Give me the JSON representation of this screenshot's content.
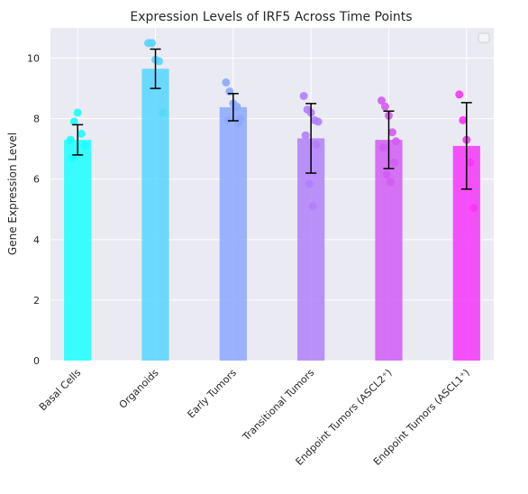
{
  "chart_data": {
    "type": "bar",
    "title": "Expression Levels of IRF5 Across Time Points",
    "xlabel": "",
    "ylabel": "Gene Expression Level",
    "ylim": [
      0,
      11
    ],
    "yticks": [
      0,
      2,
      4,
      6,
      8,
      10
    ],
    "grid": true,
    "legend": "top-right, empty",
    "categories": [
      "Basal Cells",
      "Organoids",
      "Early Tumors",
      "Transitional Tumors",
      "Endpoint Tumors (ASCL2⁺)",
      "Endpoint Tumors (ASCL1⁺)"
    ],
    "values": [
      7.3,
      9.65,
      8.38,
      7.35,
      7.3,
      7.1
    ],
    "errors": [
      0.5,
      0.65,
      0.45,
      1.15,
      0.95,
      1.43
    ],
    "colors": [
      "#19ffff",
      "#55d6ff",
      "#8ca8ff",
      "#b07ff9",
      "#d15cf4",
      "#f535fa"
    ],
    "points": [
      [
        7.3,
        7.9,
        8.2,
        7.5,
        7.1,
        6.7
      ],
      [
        10.5,
        10.5,
        9.95,
        9.9,
        8.2
      ],
      [
        9.2,
        8.9,
        8.5,
        8.4,
        8.0,
        7.95,
        7.85
      ],
      [
        8.75,
        8.3,
        8.2,
        7.95,
        7.9,
        7.45,
        7.15,
        5.85,
        5.1
      ],
      [
        8.6,
        8.4,
        8.1,
        7.55,
        7.25,
        7.05,
        6.55,
        6.15,
        5.9
      ],
      [
        8.8,
        7.95,
        7.3,
        6.55,
        5.05
      ]
    ]
  }
}
